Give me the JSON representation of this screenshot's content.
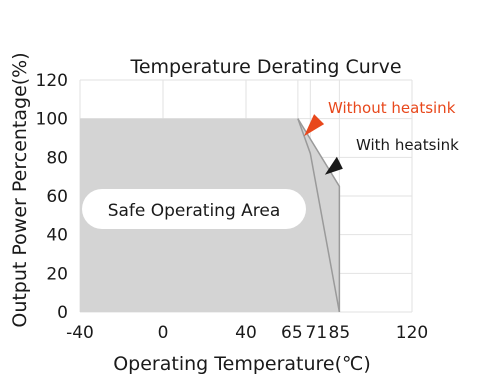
{
  "chart_data": {
    "type": "area",
    "title": "Temperature Derating Curve",
    "xlabel": "Operating Temperature(℃)",
    "ylabel": "Output Power Percentage(%)",
    "xlim": [
      -40,
      120
    ],
    "ylim": [
      0,
      120
    ],
    "x_ticks": [
      -40,
      0,
      40,
      65,
      71,
      85,
      120
    ],
    "x_tick_labels": [
      "-40",
      "0",
      "40",
      "65",
      "71",
      "85",
      "120"
    ],
    "y_ticks": [
      0,
      20,
      40,
      60,
      80,
      100,
      120
    ],
    "y_tick_labels": [
      "0",
      "20",
      "40",
      "60",
      "80",
      "100",
      "120"
    ],
    "grid": true,
    "series": [
      {
        "name": "Without heatsink",
        "x": [
          -40,
          65,
          71,
          85
        ],
        "y": [
          100,
          100,
          82,
          0
        ]
      },
      {
        "name": "With heatsink",
        "x": [
          -40,
          65,
          85,
          85
        ],
        "y": [
          100,
          100,
          65,
          0
        ]
      }
    ],
    "region_label": "Safe Operating Area",
    "colors": {
      "area": "#d4d4d4",
      "without_heatsink": "#e8481c",
      "with_heatsink": "#1a1a1a"
    }
  }
}
